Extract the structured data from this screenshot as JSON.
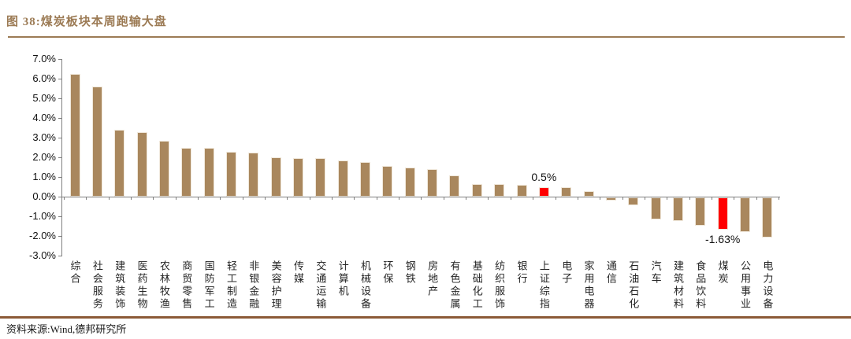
{
  "figure": {
    "title": "图 38:煤炭板块本周跑输大盘",
    "source": "资料来源:Wind,德邦研究所"
  },
  "colors": {
    "bar": "#A9875D",
    "highlight": "#FF0000",
    "title_brown": "#9C7B55",
    "bottom_rule_brown": "#8B5A36",
    "axis_gray": "#808080",
    "text": "#111111"
  },
  "chart_data": {
    "type": "bar",
    "title": "图 38:煤炭板块本周跑输大盘",
    "xlabel": "",
    "ylabel": "",
    "ylim": [
      -3.0,
      7.0
    ],
    "grid": false,
    "legend": false,
    "ytick_labels": [
      "7.0%",
      "6.0%",
      "5.0%",
      "4.0%",
      "3.0%",
      "2.0%",
      "1.0%",
      "0.0%",
      "-1.0%",
      "-2.0%",
      "-3.0%"
    ],
    "ytick_values": [
      7,
      6,
      5,
      4,
      3,
      2,
      1,
      0,
      -1,
      -2,
      -3
    ],
    "categories": [
      "综合",
      "社会服务",
      "建筑装饰",
      "医药生物",
      "农林牧渔",
      "商贸零售",
      "国防军工",
      "轻工制造",
      "非银金融",
      "美容护理",
      "传媒",
      "交通运输",
      "计算机",
      "机械设备",
      "环保",
      "钢铁",
      "房地产",
      "有色金属",
      "基础化工",
      "纺织服饰",
      "银行",
      "上证综指",
      "电子",
      "家用电器",
      "通信",
      "石油石化",
      "汽车",
      "建筑材料",
      "食品饮料",
      "煤炭",
      "公用事业",
      "电力设备"
    ],
    "values": [
      6.25,
      5.6,
      3.4,
      3.3,
      2.85,
      2.5,
      2.5,
      2.3,
      2.25,
      2.0,
      1.95,
      1.95,
      1.85,
      1.75,
      1.55,
      1.5,
      1.4,
      1.1,
      0.65,
      0.65,
      0.6,
      0.5,
      0.5,
      0.3,
      -0.15,
      -0.4,
      -1.1,
      -1.2,
      -1.45,
      -1.63,
      -1.75,
      -2.05
    ],
    "highlighted": [
      "上证综指",
      "煤炭"
    ],
    "annotations": [
      {
        "category": "上证综指",
        "text": "0.5%",
        "position": "above"
      },
      {
        "category": "煤炭",
        "text": "-1.63%",
        "position": "below"
      }
    ]
  }
}
